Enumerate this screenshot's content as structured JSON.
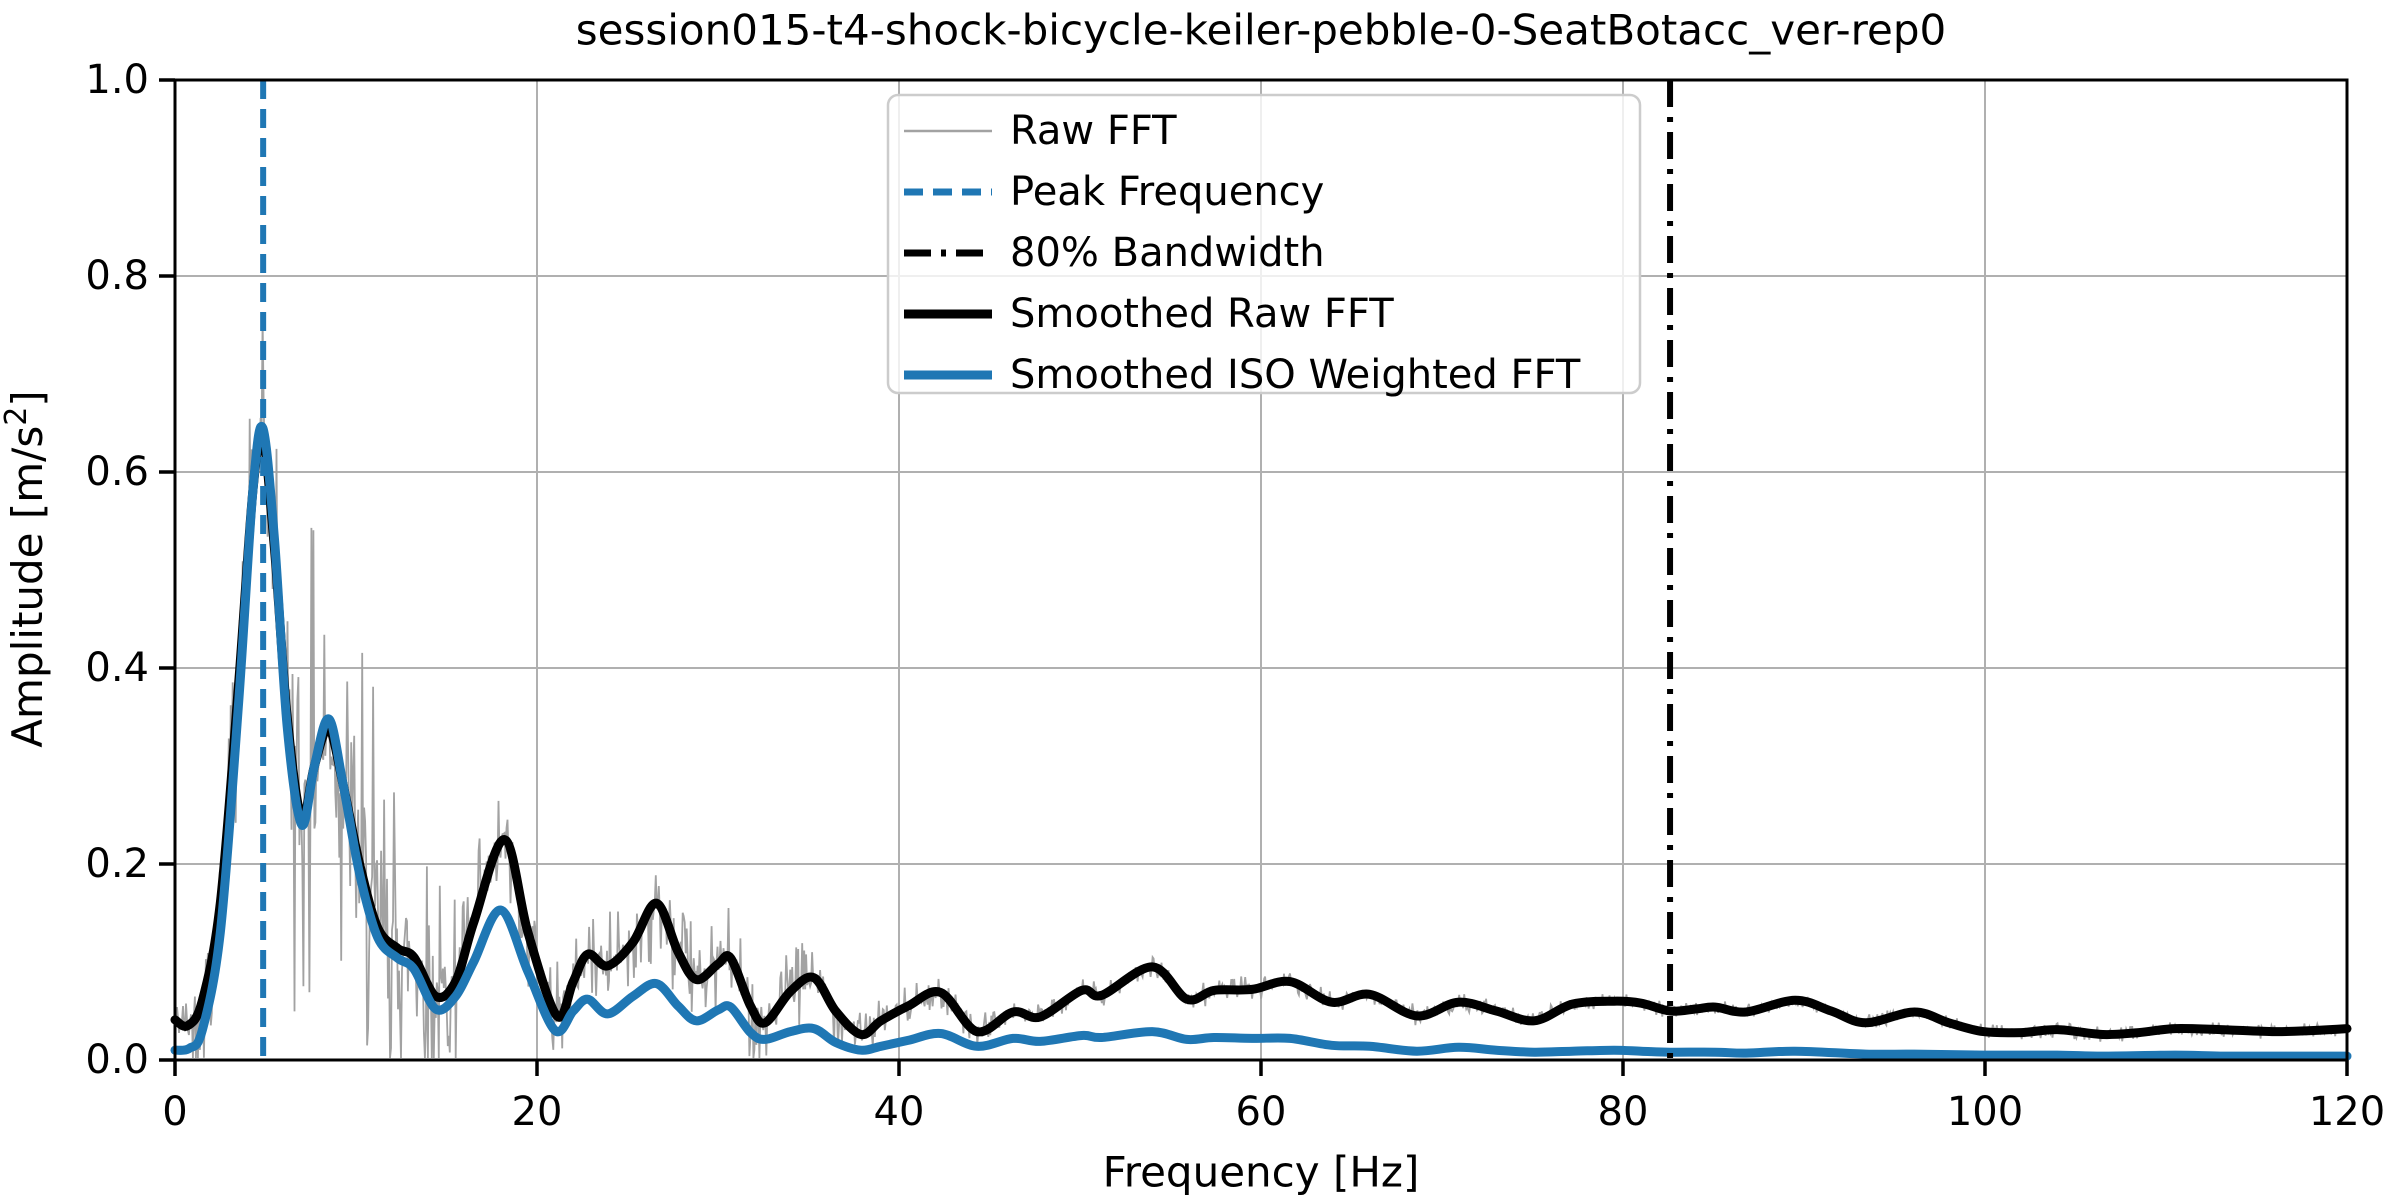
{
  "colors": {
    "blue": "#1f77b4",
    "black": "#000000",
    "raw_gray": "#a2a2a2",
    "grid": "#b0b0b0",
    "legend_border": "#cccccc",
    "legend_fill": "rgba(255,255,255,0.8)"
  },
  "legend": {
    "items": [
      {
        "label": "Raw FFT",
        "style": "raw"
      },
      {
        "label": "Peak Frequency",
        "style": "peak"
      },
      {
        "label": "80% Bandwidth",
        "style": "bandwidth"
      },
      {
        "label": "Smoothed Raw FFT",
        "style": "smoothed_raw"
      },
      {
        "label": "Smoothed ISO Weighted FFT",
        "style": "smoothed_iso"
      }
    ]
  },
  "chart_data": {
    "type": "line",
    "title": "session015-t4-shock-bicycle-keiler-pebble-0-SeatBotacc_ver-rep0",
    "xlabel": "Frequency [Hz]",
    "ylabel": "Amplitude [m/s²]",
    "ylabel_parts": {
      "main": "Amplitude [m/s",
      "sup": "2",
      "close": "]"
    },
    "xlim": [
      0,
      120
    ],
    "ylim": [
      0.0,
      1.0
    ],
    "x_ticks": [
      0,
      20,
      40,
      60,
      80,
      100,
      120
    ],
    "y_ticks": [
      0.0,
      0.2,
      0.4,
      0.6,
      0.8,
      1.0
    ],
    "grid": true,
    "legend_position": "upper center",
    "vlines": {
      "peak_frequency_hz": 4.87,
      "bandwidth_80pct_hz": 82.6
    },
    "series": [
      {
        "name": "Smoothed Raw FFT",
        "keypoints": [
          [
            0,
            0.041
          ],
          [
            0.7,
            0.035
          ],
          [
            1.5,
            0.06
          ],
          [
            2.5,
            0.16
          ],
          [
            3.5,
            0.38
          ],
          [
            4.3,
            0.58
          ],
          [
            4.85,
            0.635
          ],
          [
            5.5,
            0.52
          ],
          [
            6.2,
            0.35
          ],
          [
            7.0,
            0.247
          ],
          [
            7.7,
            0.3
          ],
          [
            8.5,
            0.338
          ],
          [
            9.3,
            0.28
          ],
          [
            10.2,
            0.2
          ],
          [
            11.2,
            0.135
          ],
          [
            12.3,
            0.114
          ],
          [
            13.2,
            0.105
          ],
          [
            14.4,
            0.065
          ],
          [
            15.5,
            0.08
          ],
          [
            16.5,
            0.14
          ],
          [
            18.2,
            0.225
          ],
          [
            19.5,
            0.13
          ],
          [
            21.1,
            0.045
          ],
          [
            22.0,
            0.08
          ],
          [
            22.8,
            0.108
          ],
          [
            23.9,
            0.096
          ],
          [
            25.3,
            0.12
          ],
          [
            26.6,
            0.16
          ],
          [
            27.8,
            0.11
          ],
          [
            28.8,
            0.082
          ],
          [
            30.0,
            0.098
          ],
          [
            30.7,
            0.104
          ],
          [
            31.8,
            0.055
          ],
          [
            32.6,
            0.038
          ],
          [
            34.0,
            0.07
          ],
          [
            35.3,
            0.084
          ],
          [
            36.5,
            0.05
          ],
          [
            37.9,
            0.026
          ],
          [
            39.0,
            0.04
          ],
          [
            40.5,
            0.055
          ],
          [
            42.3,
            0.069
          ],
          [
            44.3,
            0.029
          ],
          [
            46.3,
            0.049
          ],
          [
            47.8,
            0.044
          ],
          [
            50.1,
            0.071
          ],
          [
            51.2,
            0.066
          ],
          [
            54.0,
            0.095
          ],
          [
            55.9,
            0.062
          ],
          [
            57.4,
            0.071
          ],
          [
            59.5,
            0.072
          ],
          [
            61.6,
            0.08
          ],
          [
            63.9,
            0.059
          ],
          [
            66.0,
            0.067
          ],
          [
            68.6,
            0.045
          ],
          [
            70.9,
            0.059
          ],
          [
            73.0,
            0.05
          ],
          [
            75.1,
            0.04
          ],
          [
            77.2,
            0.057
          ],
          [
            79.5,
            0.06
          ],
          [
            81.0,
            0.058
          ],
          [
            82.6,
            0.05
          ],
          [
            84.0,
            0.052
          ],
          [
            85.1,
            0.054
          ],
          [
            86.8,
            0.049
          ],
          [
            89.5,
            0.061
          ],
          [
            91.5,
            0.05
          ],
          [
            93.4,
            0.038
          ],
          [
            96.1,
            0.049
          ],
          [
            98.0,
            0.038
          ],
          [
            99.9,
            0.029
          ],
          [
            102.0,
            0.028
          ],
          [
            104.0,
            0.031
          ],
          [
            106.5,
            0.026
          ],
          [
            108.5,
            0.028
          ],
          [
            110.5,
            0.032
          ],
          [
            113.0,
            0.031
          ],
          [
            116.0,
            0.029
          ],
          [
            118.0,
            0.03
          ],
          [
            120,
            0.032
          ]
        ]
      },
      {
        "name": "Smoothed ISO Weighted FFT",
        "keypoints": [
          [
            0,
            0.01
          ],
          [
            0.8,
            0.012
          ],
          [
            1.5,
            0.03
          ],
          [
            2.5,
            0.13
          ],
          [
            3.5,
            0.36
          ],
          [
            4.3,
            0.58
          ],
          [
            4.85,
            0.645
          ],
          [
            5.5,
            0.53
          ],
          [
            6.2,
            0.34
          ],
          [
            7.0,
            0.24
          ],
          [
            7.7,
            0.3
          ],
          [
            8.5,
            0.348
          ],
          [
            9.3,
            0.28
          ],
          [
            10.2,
            0.19
          ],
          [
            11.2,
            0.125
          ],
          [
            12.3,
            0.104
          ],
          [
            13.2,
            0.093
          ],
          [
            14.4,
            0.052
          ],
          [
            15.5,
            0.065
          ],
          [
            16.5,
            0.1
          ],
          [
            18.0,
            0.153
          ],
          [
            19.5,
            0.09
          ],
          [
            21.0,
            0.03
          ],
          [
            22.0,
            0.05
          ],
          [
            22.8,
            0.062
          ],
          [
            23.9,
            0.047
          ],
          [
            25.3,
            0.065
          ],
          [
            26.6,
            0.078
          ],
          [
            27.8,
            0.055
          ],
          [
            28.8,
            0.04
          ],
          [
            30.0,
            0.051
          ],
          [
            30.7,
            0.054
          ],
          [
            31.8,
            0.028
          ],
          [
            32.6,
            0.021
          ],
          [
            34.0,
            0.029
          ],
          [
            35.3,
            0.032
          ],
          [
            36.5,
            0.018
          ],
          [
            37.9,
            0.01
          ],
          [
            39.0,
            0.014
          ],
          [
            40.5,
            0.02
          ],
          [
            42.3,
            0.027
          ],
          [
            44.3,
            0.014
          ],
          [
            46.3,
            0.022
          ],
          [
            47.8,
            0.019
          ],
          [
            50.1,
            0.025
          ],
          [
            51.2,
            0.023
          ],
          [
            54.0,
            0.029
          ],
          [
            55.9,
            0.021
          ],
          [
            57.4,
            0.023
          ],
          [
            59.5,
            0.022
          ],
          [
            61.6,
            0.022
          ],
          [
            63.9,
            0.015
          ],
          [
            66.0,
            0.014
          ],
          [
            68.6,
            0.009
          ],
          [
            70.9,
            0.013
          ],
          [
            73.0,
            0.01
          ],
          [
            75.1,
            0.008
          ],
          [
            77.2,
            0.009
          ],
          [
            79.5,
            0.01
          ],
          [
            81.0,
            0.009
          ],
          [
            82.6,
            0.008
          ],
          [
            85.1,
            0.008
          ],
          [
            86.8,
            0.007
          ],
          [
            89.5,
            0.009
          ],
          [
            93.4,
            0.006
          ],
          [
            96.1,
            0.006
          ],
          [
            99.9,
            0.005
          ],
          [
            104.0,
            0.005
          ],
          [
            106.5,
            0.004
          ],
          [
            110.5,
            0.005
          ],
          [
            113.0,
            0.004
          ],
          [
            116.0,
            0.004
          ],
          [
            120,
            0.004
          ]
        ]
      },
      {
        "name": "Raw FFT",
        "derived_from": "Smoothed Raw FFT",
        "noise_envelope": [
          [
            0,
            0.018
          ],
          [
            1.5,
            0.03
          ],
          [
            2.5,
            0.045
          ],
          [
            4,
            0.045
          ],
          [
            5.5,
            0.05
          ],
          [
            6,
            0.1
          ],
          [
            9.5,
            0.1
          ],
          [
            12,
            0.085
          ],
          [
            14,
            0.07
          ],
          [
            15,
            0.045
          ],
          [
            16,
            0.03
          ],
          [
            19,
            0.028
          ],
          [
            21,
            0.022
          ],
          [
            25,
            0.02
          ],
          [
            28,
            0.02
          ],
          [
            33,
            0.02
          ],
          [
            36,
            0.015
          ],
          [
            40,
            0.008
          ],
          [
            44,
            0.006
          ],
          [
            50,
            0.005
          ],
          [
            60,
            0.005
          ],
          [
            70,
            0.004
          ],
          [
            80,
            0.003
          ],
          [
            100,
            0.003
          ],
          [
            120,
            0.003
          ]
        ],
        "sample_step_hz": 0.055,
        "seed": 42
      }
    ]
  }
}
